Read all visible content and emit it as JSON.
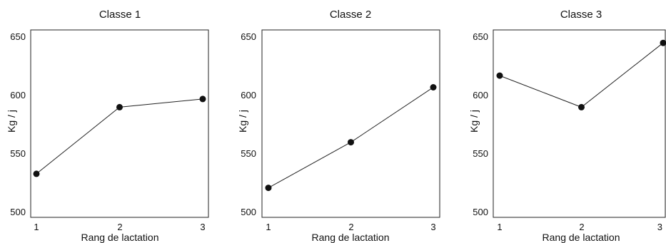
{
  "chart_data": [
    {
      "type": "line",
      "title": "Classe 1",
      "xlabel": "Rang de lactation",
      "ylabel": "Kg / j",
      "x": [
        1,
        2,
        3
      ],
      "values": [
        533,
        590,
        597
      ],
      "xticks": [
        "1",
        "2",
        "3"
      ],
      "yticks": [
        "500",
        "550",
        "600",
        "650"
      ],
      "xlim": [
        1,
        3
      ],
      "ylim": [
        500,
        650
      ],
      "grid": false
    },
    {
      "type": "line",
      "title": "Classe 2",
      "xlabel": "Rang de lactation",
      "ylabel": "Kg / j",
      "x": [
        1,
        2,
        3
      ],
      "values": [
        521,
        560,
        607
      ],
      "xticks": [
        "1",
        "2",
        "3"
      ],
      "yticks": [
        "500",
        "550",
        "600",
        "650"
      ],
      "xlim": [
        1,
        3
      ],
      "ylim": [
        500,
        650
      ],
      "grid": false
    },
    {
      "type": "line",
      "title": "Classe 3",
      "xlabel": "Rang de lactation",
      "ylabel": "Kg / j",
      "x": [
        1,
        2,
        3
      ],
      "values": [
        617,
        590,
        645
      ],
      "xticks": [
        "1",
        "2",
        "3"
      ],
      "yticks": [
        "500",
        "550",
        "600",
        "650"
      ],
      "xlim": [
        1,
        3
      ],
      "ylim": [
        500,
        650
      ],
      "grid": false
    }
  ]
}
